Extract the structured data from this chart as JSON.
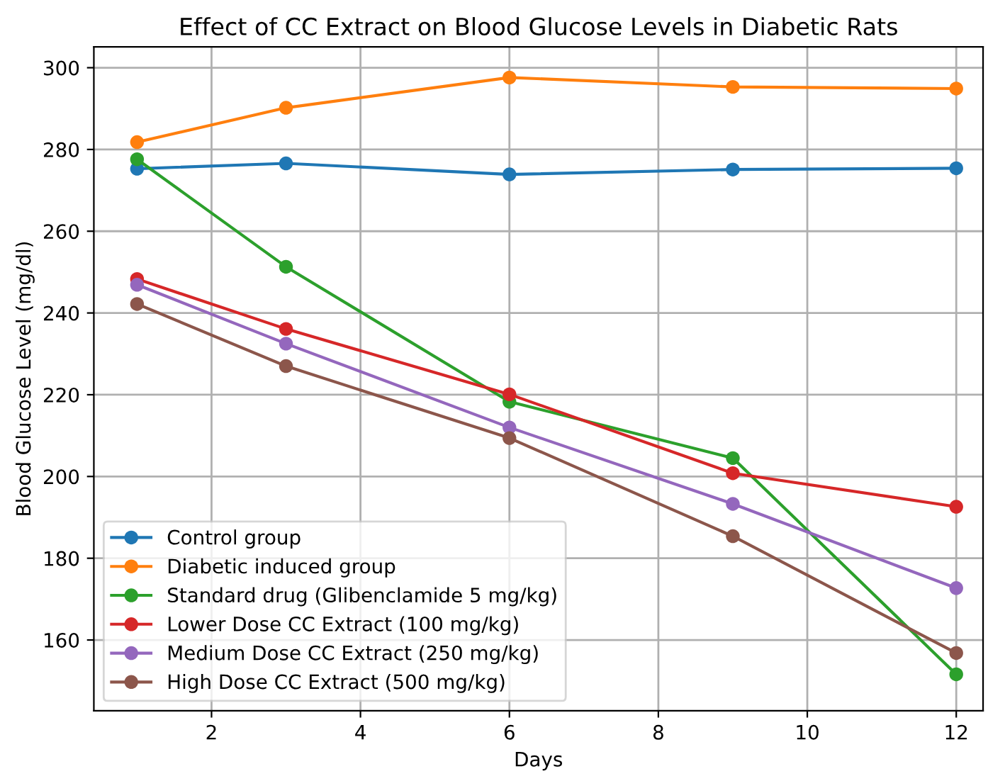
{
  "chart_data": {
    "type": "line",
    "title": "Effect of CC Extract on Blood Glucose Levels in Diabetic Rats",
    "xlabel": "Days",
    "ylabel": "Blood Glucose Level (mg/dl)",
    "x": [
      1,
      3,
      6,
      9,
      12
    ],
    "series": [
      {
        "name": "Control group",
        "color": "#1f77b4",
        "values": [
          275.3,
          276.6,
          273.9,
          275.1,
          275.4
        ]
      },
      {
        "name": "Diabetic induced group",
        "color": "#ff7f0e",
        "values": [
          281.8,
          290.2,
          297.6,
          295.3,
          294.9
        ]
      },
      {
        "name": "Standard drug (Glibenclamide 5 mg/kg)",
        "color": "#2ca02c",
        "values": [
          277.6,
          251.3,
          218.3,
          204.5,
          151.6
        ]
      },
      {
        "name": "Lower Dose CC Extract (100 mg/kg)",
        "color": "#d62728",
        "values": [
          248.3,
          236.1,
          220.1,
          200.8,
          192.6
        ]
      },
      {
        "name": "Medium Dose CC Extract (250 mg/kg)",
        "color": "#9467bd",
        "values": [
          246.9,
          232.5,
          212.0,
          193.3,
          172.7
        ]
      },
      {
        "name": "High Dose CC Extract (500 mg/kg)",
        "color": "#8c564b",
        "values": [
          242.2,
          227.0,
          209.4,
          185.4,
          156.8
        ]
      }
    ],
    "xlim": [
      0.42,
      12.36
    ],
    "ylim": [
      142.7,
      305.1
    ],
    "xticks": [
      2,
      4,
      6,
      8,
      10,
      12
    ],
    "yticks": [
      160,
      180,
      200,
      220,
      240,
      260,
      280,
      300
    ],
    "grid": true,
    "legend": "bottom left",
    "marker": "circle",
    "line_style": "solid"
  }
}
